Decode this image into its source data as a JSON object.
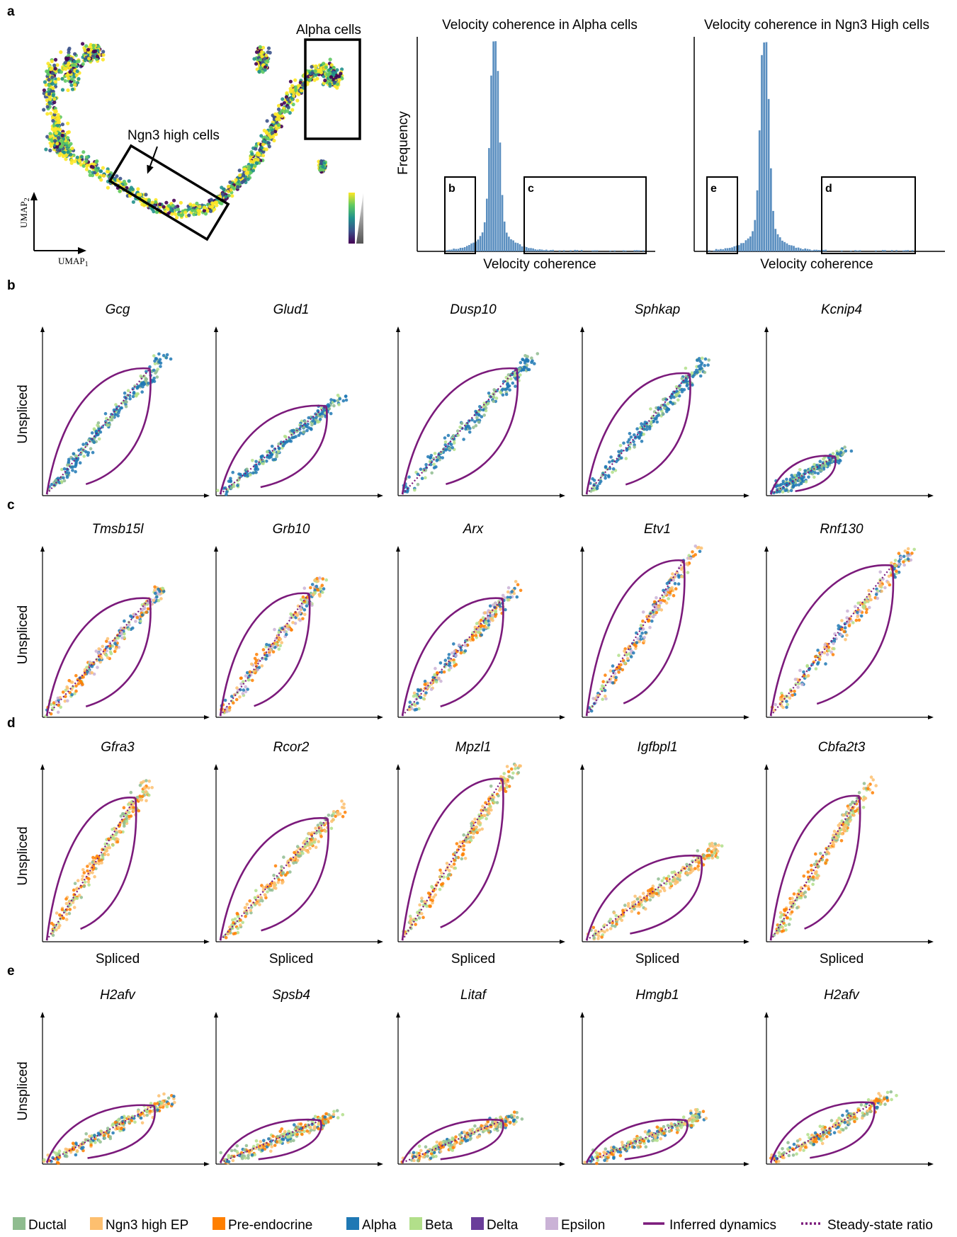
{
  "panel_labels": [
    "a",
    "b",
    "c",
    "d",
    "e"
  ],
  "panel_a": {
    "umap": {
      "annotations": {
        "alpha": "Alpha cells",
        "ngn3": "Ngn3 high cells"
      },
      "axis_x": "UMAP",
      "axis_x_sub": "1",
      "axis_y": "UMAP",
      "axis_y_sub": "2",
      "colormap": [
        "#440154",
        "#3b528b",
        "#21918c",
        "#5ec962",
        "#fde725"
      ]
    },
    "histograms": [
      {
        "title": "Velocity coherence in Alpha cells",
        "ylabel": "Frequency",
        "xlabel": "Velocity coherence",
        "boxes": [
          "b",
          "c"
        ]
      },
      {
        "title": "Velocity coherence in Ngn3 High cells",
        "ylabel": "",
        "xlabel": "Velocity coherence",
        "boxes": [
          "e",
          "d"
        ]
      }
    ]
  },
  "axis_labels": {
    "y": "Unspliced",
    "x": "Spliced"
  },
  "rows": [
    {
      "label": "b",
      "genes": [
        "Gcg",
        "Glud1",
        "Dusp10",
        "Sphkap",
        "Kcnip4"
      ]
    },
    {
      "label": "c",
      "genes": [
        "Tmsb15l",
        "Grb10",
        "Arx",
        "Etv1",
        "Rnf130"
      ]
    },
    {
      "label": "d",
      "genes": [
        "Gfra3",
        "Rcor2",
        "Mpzl1",
        "Igfbpl1",
        "Cbfa2t3"
      ]
    },
    {
      "label": "e",
      "genes": [
        "H2afv",
        "Spsb4",
        "Litaf",
        "Hmgb1",
        "H2afv"
      ]
    }
  ],
  "legend": [
    {
      "label": "Ductal",
      "color": "#8fbc8f",
      "kind": "box"
    },
    {
      "label": "Ngn3 high EP",
      "color": "#fdbf6f",
      "kind": "box"
    },
    {
      "label": "Pre-endocrine",
      "color": "#ff7f00",
      "kind": "box"
    },
    {
      "label": "Alpha",
      "color": "#1f78b4",
      "kind": "box"
    },
    {
      "label": "Beta",
      "color": "#b2df8a",
      "kind": "box"
    },
    {
      "label": "Delta",
      "color": "#6a3d9a",
      "kind": "box"
    },
    {
      "label": "Epsilon",
      "color": "#cab2d6",
      "kind": "box"
    },
    {
      "label": "Inferred dynamics",
      "color": "#7b1a7b",
      "kind": "solid"
    },
    {
      "label": "Steady-state ratio",
      "color": "#7b1a7b",
      "kind": "dotted"
    }
  ]
}
